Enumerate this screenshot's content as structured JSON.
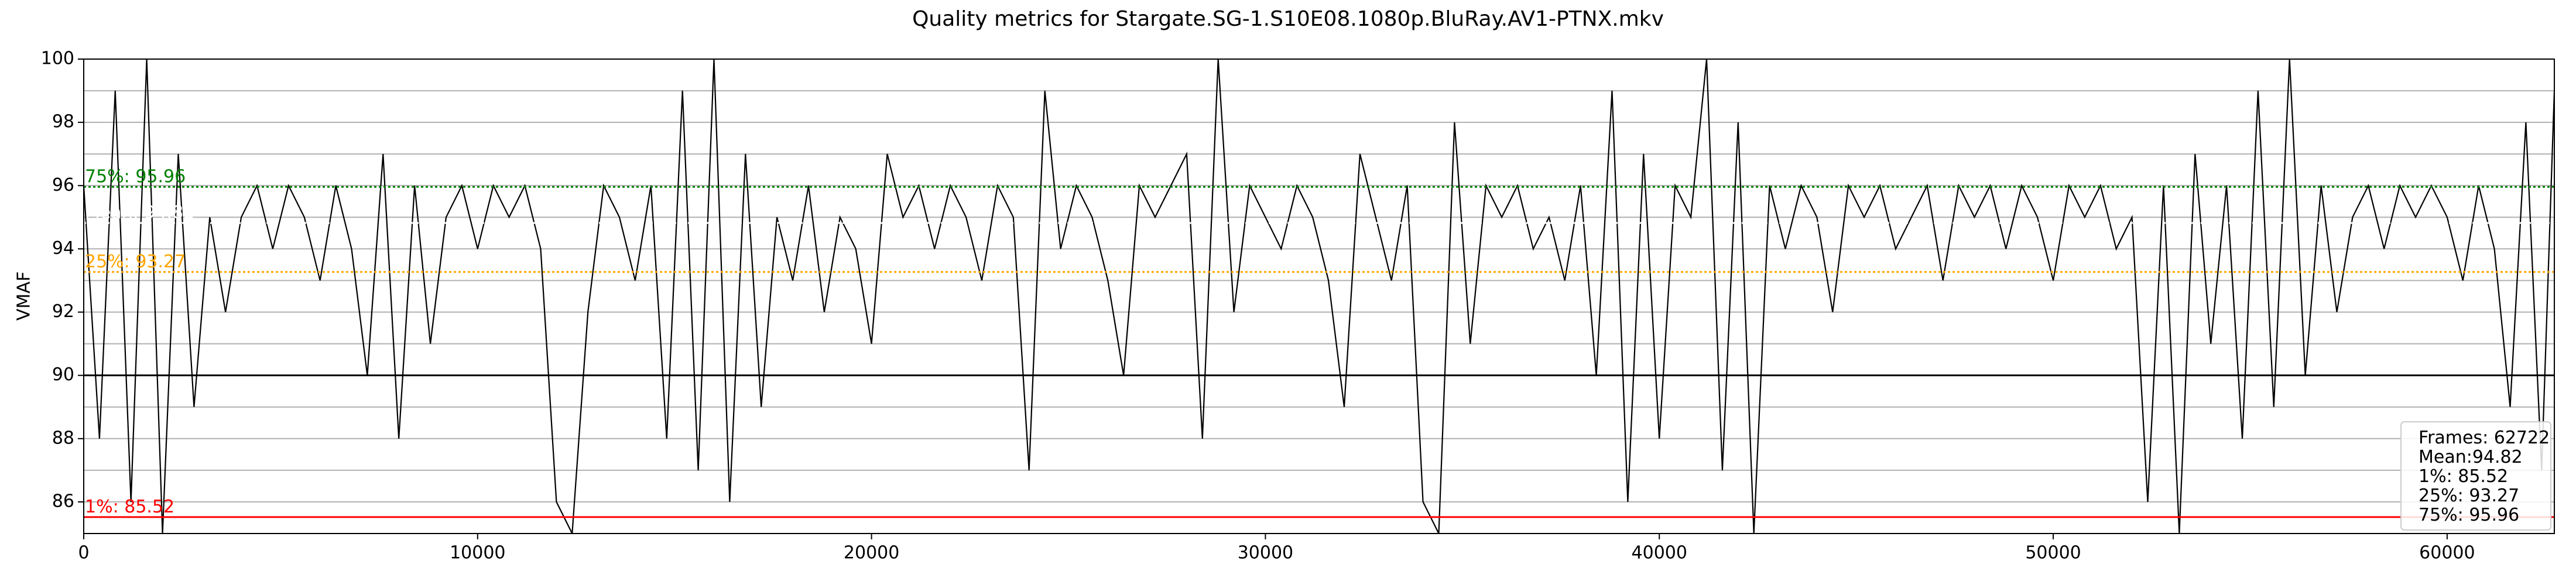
{
  "chart_data": {
    "type": "line",
    "title": "Quality metrics for Stargate.SG-1.S10E08.1080p.BluRay.AV1-PTNX.mkv",
    "y_label": "VMAF",
    "x": [
      0,
      400,
      800,
      1200,
      1600,
      2000,
      2400,
      2800,
      3200,
      3600,
      4000,
      4400,
      4800,
      5200,
      5600,
      6000,
      6400,
      6800,
      7200,
      7600,
      8000,
      8400,
      8800,
      9200,
      9600,
      10000,
      10400,
      10800,
      11200,
      11600,
      12000,
      12400,
      12800,
      13200,
      13600,
      14000,
      14400,
      14800,
      15200,
      15600,
      16000,
      16400,
      16800,
      17200,
      17600,
      18000,
      18400,
      18800,
      19200,
      19600,
      20000,
      20400,
      20800,
      21200,
      21600,
      22000,
      22400,
      22800,
      23200,
      23600,
      24000,
      24400,
      24800,
      25200,
      25600,
      26000,
      26400,
      26800,
      27200,
      27600,
      28000,
      28400,
      28800,
      29200,
      29600,
      30000,
      30400,
      30800,
      31200,
      31600,
      32000,
      32400,
      32800,
      33200,
      33600,
      34000,
      34400,
      34800,
      35200,
      35600,
      36000,
      36400,
      36800,
      37200,
      37600,
      38000,
      38400,
      38800,
      39200,
      39600,
      40000,
      40400,
      40800,
      41200,
      41600,
      42000,
      42400,
      42800,
      43200,
      43600,
      44000,
      44400,
      44800,
      45200,
      45600,
      46000,
      46400,
      46800,
      47200,
      47600,
      48000,
      48400,
      48800,
      49200,
      49600,
      50000,
      50400,
      50800,
      51200,
      51600,
      52000,
      52400,
      52800,
      53200,
      53600,
      54000,
      54400,
      54800,
      55200,
      55600,
      56000,
      56400,
      56800,
      57200,
      57600,
      58000,
      58400,
      58800,
      59200,
      59600,
      60000,
      60400,
      60800,
      61200,
      61600,
      62000,
      62400,
      62722
    ],
    "series": [
      {
        "color": "#000000",
        "values": [
          96,
          88,
          99,
          86,
          100,
          85,
          97,
          89,
          95,
          92,
          95,
          96,
          94,
          96,
          95,
          93,
          96,
          94,
          90,
          97,
          88,
          96,
          91,
          95,
          96,
          94,
          96,
          95,
          96,
          94,
          86,
          85,
          92,
          96,
          95,
          93,
          96,
          88,
          99,
          87,
          100,
          86,
          97,
          89,
          95,
          93,
          96,
          92,
          95,
          94,
          91,
          97,
          95,
          96,
          94,
          96,
          95,
          93,
          96,
          95,
          87,
          99,
          94,
          96,
          95,
          93,
          90,
          96,
          95,
          96,
          97,
          88,
          100,
          92,
          96,
          95,
          94,
          96,
          95,
          93,
          89,
          97,
          95,
          93,
          96,
          86,
          85,
          98,
          91,
          96,
          95,
          96,
          94,
          95,
          93,
          96,
          90,
          99,
          86,
          97,
          88,
          96,
          95,
          100,
          87,
          98,
          85,
          96,
          94,
          96,
          95,
          92,
          96,
          95,
          96,
          94,
          95,
          96,
          93,
          96,
          95,
          96,
          94,
          96,
          95,
          93,
          96,
          95,
          96,
          94,
          95,
          86,
          96,
          85,
          97,
          91,
          96,
          88,
          99,
          89,
          100,
          90,
          96,
          92,
          95,
          96,
          94,
          96,
          95,
          96,
          95,
          93,
          96,
          94,
          89,
          98,
          87,
          99
        ]
      }
    ],
    "xlim": [
      0,
      62722
    ],
    "xticks": [
      0,
      10000,
      20000,
      30000,
      40000,
      50000,
      60000
    ],
    "ylim": [
      85,
      100
    ],
    "yticks": [
      86,
      88,
      90,
      92,
      94,
      96,
      98,
      100
    ],
    "minor_yticks": [
      87,
      89,
      91,
      93,
      95,
      97,
      99
    ],
    "grid": true,
    "reference_lines": [
      {
        "value": 85.52,
        "label": "1%: 85.52",
        "color": "#ff0000",
        "style": "solid"
      },
      {
        "value": 93.27,
        "label": "25%: 93.27",
        "color": "#ffa500",
        "style": "dotted"
      },
      {
        "value": 94.82,
        "label": "Mean: 94.82",
        "color": "#ffffff",
        "style": "dotted"
      },
      {
        "value": 95.96,
        "label": "75%: 95.96",
        "color": "#008000",
        "style": "dotted"
      },
      {
        "value": 90,
        "color": "#000000",
        "style": "solid"
      }
    ],
    "stats_box": [
      "Frames: 62722",
      "Mean:94.82",
      "1%: 85.52",
      "25%: 93.27",
      "75%: 95.96"
    ],
    "stats_box_corner": "lower right"
  }
}
